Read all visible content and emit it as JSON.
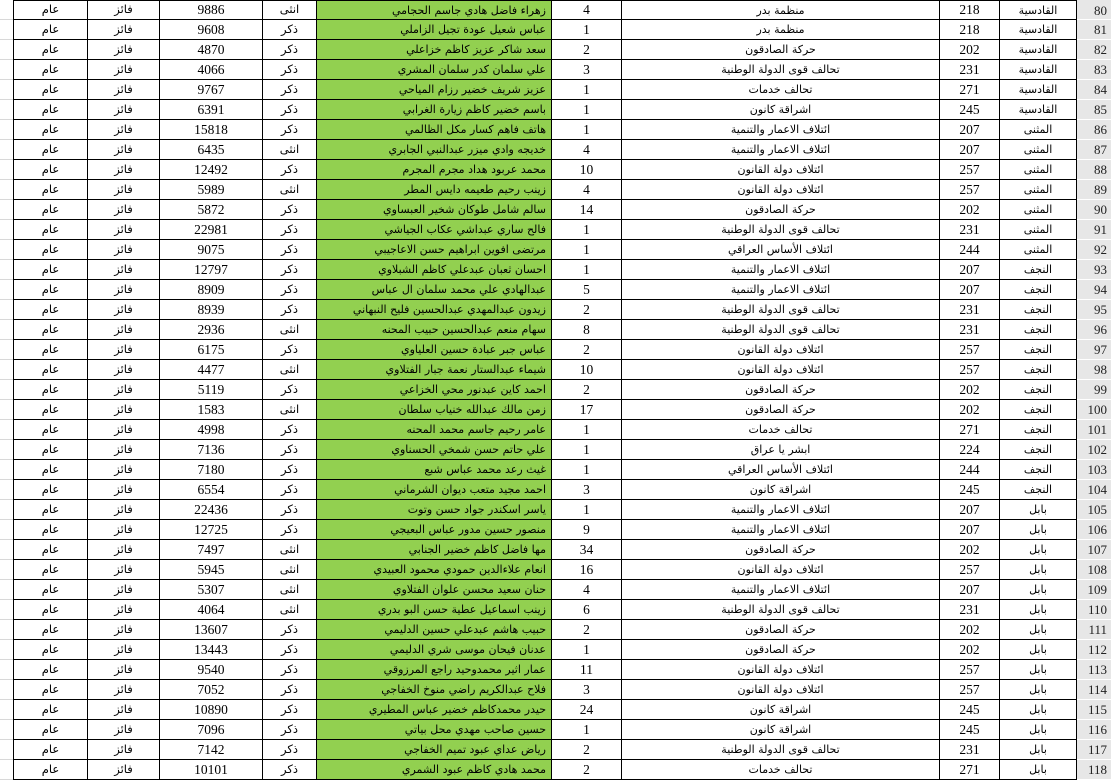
{
  "colors": {
    "highlight_green": "#92D050",
    "row_header_bg": "#E7E7E7",
    "grid_line": "#000000",
    "gutter_grid_line": "#D8D8D8"
  },
  "labels": {
    "status_winner": "فائز",
    "type_general": "عام",
    "gender_male": "ذكر",
    "gender_female": "انثى"
  },
  "rows": [
    {
      "no": 80,
      "province": "القادسية",
      "party_no": 218,
      "party": "منظمة بدر",
      "cand_no": 4,
      "name": "زهراء فاضل هادي جاسم الحجامي",
      "gender": "انثى",
      "votes": 9886,
      "status": "فائز",
      "type": "عام"
    },
    {
      "no": 81,
      "province": "القادسية",
      "party_no": 218,
      "party": "منظمة بدر",
      "cand_no": 1,
      "name": "عباس شعيل عودة تجيل الزاملي",
      "gender": "ذكر",
      "votes": 9608,
      "status": "فائز",
      "type": "عام"
    },
    {
      "no": 82,
      "province": "القادسية",
      "party_no": 202,
      "party": "حركة الصادقون",
      "cand_no": 2,
      "name": "سعد شاكر عزيز كاظم خزاعلي",
      "gender": "ذكر",
      "votes": 4870,
      "status": "فائز",
      "type": "عام"
    },
    {
      "no": 83,
      "province": "القادسية",
      "party_no": 231,
      "party": "تحالف قوى الدولة الوطنية",
      "cand_no": 3,
      "name": "علي سلمان كدر سلمان المشري",
      "gender": "ذكر",
      "votes": 4066,
      "status": "فائز",
      "type": "عام"
    },
    {
      "no": 84,
      "province": "القادسية",
      "party_no": 271,
      "party": "تحالف خدمات",
      "cand_no": 1,
      "name": "عزيز شريف خضير رزام المياحي",
      "gender": "ذكر",
      "votes": 9767,
      "status": "فائز",
      "type": "عام"
    },
    {
      "no": 85,
      "province": "القادسية",
      "party_no": 245,
      "party": "اشراقة كانون",
      "cand_no": 1,
      "name": "باسم خضير كاظم زيارة الغرابي",
      "gender": "ذكر",
      "votes": 6391,
      "status": "فائز",
      "type": "عام"
    },
    {
      "no": 86,
      "province": "المثنى",
      "party_no": 207,
      "party": "ائتلاف الاعمار والتنمية",
      "cand_no": 1,
      "name": "هاتف فاهم كسار مكل الظالمي",
      "gender": "ذكر",
      "votes": 15818,
      "status": "فائز",
      "type": "عام"
    },
    {
      "no": 87,
      "province": "المثنى",
      "party_no": 207,
      "party": "ائتلاف الاعمار والتنمية",
      "cand_no": 4,
      "name": "خديجه وادي ميزر عبدالنبي الجابري",
      "gender": "انثى",
      "votes": 6435,
      "status": "فائز",
      "type": "عام"
    },
    {
      "no": 88,
      "province": "المثنى",
      "party_no": 257,
      "party": "ائتلاف دولة القانون",
      "cand_no": 10,
      "name": "محمد عربود هداد مجرم المجرم",
      "gender": "ذكر",
      "votes": 12492,
      "status": "فائز",
      "type": "عام"
    },
    {
      "no": 89,
      "province": "المثنى",
      "party_no": 257,
      "party": "ائتلاف دولة القانون",
      "cand_no": 4,
      "name": "زينب رحيم طعيمه دايس المطر",
      "gender": "انثى",
      "votes": 5989,
      "status": "فائز",
      "type": "عام"
    },
    {
      "no": 90,
      "province": "المثنى",
      "party_no": 202,
      "party": "حركة الصادقون",
      "cand_no": 14,
      "name": "سالم شامل طوكان شخير العبساوي",
      "gender": "ذكر",
      "votes": 5872,
      "status": "فائز",
      "type": "عام"
    },
    {
      "no": 91,
      "province": "المثنى",
      "party_no": 231,
      "party": "تحالف قوى الدولة الوطنية",
      "cand_no": 1,
      "name": "فالح ساري عبداشي عكاب الجياشي",
      "gender": "ذكر",
      "votes": 22981,
      "status": "فائز",
      "type": "عام"
    },
    {
      "no": 92,
      "province": "المثنى",
      "party_no": 244,
      "party": "ائتلاف الأساس العراقي",
      "cand_no": 1,
      "name": "مرتضى افوين ابراهيم حسن الاعاجيبي",
      "gender": "ذكر",
      "votes": 9075,
      "status": "فائز",
      "type": "عام"
    },
    {
      "no": 93,
      "province": "النجف",
      "party_no": 207,
      "party": "ائتلاف الاعمار والتنمية",
      "cand_no": 1,
      "name": "احسان ثعبان عبدعلي كاظم الشبلاوي",
      "gender": "ذكر",
      "votes": 12797,
      "status": "فائز",
      "type": "عام"
    },
    {
      "no": 94,
      "province": "النجف",
      "party_no": 207,
      "party": "ائتلاف الاعمار والتنمية",
      "cand_no": 5,
      "name": "عبدالهادي علي محمد سلمان ال عباس",
      "gender": "ذكر",
      "votes": 8909,
      "status": "فائز",
      "type": "عام"
    },
    {
      "no": 95,
      "province": "النجف",
      "party_no": 231,
      "party": "تحالف قوى الدولة الوطنية",
      "cand_no": 2,
      "name": "زيدون عبدالمهدي عبدالحسين فليح النبهاني",
      "gender": "ذكر",
      "votes": 8939,
      "status": "فائز",
      "type": "عام"
    },
    {
      "no": 96,
      "province": "النجف",
      "party_no": 231,
      "party": "تحالف قوى الدولة الوطنية",
      "cand_no": 8,
      "name": "سهام منعم عبدالحسين حبيب المحنه",
      "gender": "انثى",
      "votes": 2936,
      "status": "فائز",
      "type": "عام"
    },
    {
      "no": 97,
      "province": "النجف",
      "party_no": 257,
      "party": "ائتلاف دولة القانون",
      "cand_no": 2,
      "name": "عباس جبر عبادة حسين العلياوي",
      "gender": "ذكر",
      "votes": 6175,
      "status": "فائز",
      "type": "عام"
    },
    {
      "no": 98,
      "province": "النجف",
      "party_no": 257,
      "party": "ائتلاف دولة القانون",
      "cand_no": 10,
      "name": "شيماء عبدالستار نعمة جبار الفتلاوي",
      "gender": "انثى",
      "votes": 4477,
      "status": "فائز",
      "type": "عام"
    },
    {
      "no": 99,
      "province": "النجف",
      "party_no": 202,
      "party": "حركة الصادقون",
      "cand_no": 2,
      "name": "احمد كاين عبدنور محي الخزاعي",
      "gender": "ذكر",
      "votes": 5119,
      "status": "فائز",
      "type": "عام"
    },
    {
      "no": 100,
      "province": "النجف",
      "party_no": 202,
      "party": "حركة الصادقون",
      "cand_no": 17,
      "name": "زمن مالك عبدالله خنياب سلطان",
      "gender": "انثى",
      "votes": 1583,
      "status": "فائز",
      "type": "عام"
    },
    {
      "no": 101,
      "province": "النجف",
      "party_no": 271,
      "party": "تحالف خدمات",
      "cand_no": 1,
      "name": "عامر رحيم جاسم محمد المحنه",
      "gender": "ذكر",
      "votes": 4998,
      "status": "فائز",
      "type": "عام"
    },
    {
      "no": 102,
      "province": "النجف",
      "party_no": 224,
      "party": "ابشر يا عراق",
      "cand_no": 1,
      "name": "علي حاتم حسن شمخي الحسناوي",
      "gender": "ذكر",
      "votes": 7136,
      "status": "فائز",
      "type": "عام"
    },
    {
      "no": 103,
      "province": "النجف",
      "party_no": 244,
      "party": "ائتلاف الأساس العراقي",
      "cand_no": 1,
      "name": "غيث رعد محمد عباس شبع",
      "gender": "ذكر",
      "votes": 7180,
      "status": "فائز",
      "type": "عام"
    },
    {
      "no": 104,
      "province": "النجف",
      "party_no": 245,
      "party": "اشراقة كانون",
      "cand_no": 3,
      "name": "احمد مجيد متعب ديوان الشرماني",
      "gender": "ذكر",
      "votes": 6554,
      "status": "فائز",
      "type": "عام"
    },
    {
      "no": 105,
      "province": "بابل",
      "party_no": 207,
      "party": "ائتلاف الاعمار والتنمية",
      "cand_no": 1,
      "name": "ياسر اسكندر جواد حسن وتوت",
      "gender": "ذكر",
      "votes": 22436,
      "status": "فائز",
      "type": "عام"
    },
    {
      "no": 106,
      "province": "بابل",
      "party_no": 207,
      "party": "ائتلاف الاعمار والتنمية",
      "cand_no": 9,
      "name": "منصور حسين مدور عباس البعيجي",
      "gender": "ذكر",
      "votes": 12725,
      "status": "فائز",
      "type": "عام"
    },
    {
      "no": 107,
      "province": "بابل",
      "party_no": 202,
      "party": "حركة الصادقون",
      "cand_no": 34,
      "name": "مها فاضل كاظم خضير الجنابي",
      "gender": "انثى",
      "votes": 7497,
      "status": "فائز",
      "type": "عام"
    },
    {
      "no": 108,
      "province": "بابل",
      "party_no": 257,
      "party": "ائتلاف دولة القانون",
      "cand_no": 16,
      "name": "انعام علاءالدين حمودي محمود العبيدي",
      "gender": "انثى",
      "votes": 5945,
      "status": "فائز",
      "type": "عام"
    },
    {
      "no": 109,
      "province": "بابل",
      "party_no": 207,
      "party": "ائتلاف الاعمار والتنمية",
      "cand_no": 4,
      "name": "حنان سعيد محسن علوان الفتلاوي",
      "gender": "انثى",
      "votes": 5307,
      "status": "فائز",
      "type": "عام"
    },
    {
      "no": 110,
      "province": "بابل",
      "party_no": 231,
      "party": "تحالف قوى الدولة الوطنية",
      "cand_no": 6,
      "name": "زينب اسماعيل عطية حسن البو بدري",
      "gender": "انثى",
      "votes": 4064,
      "status": "فائز",
      "type": "عام"
    },
    {
      "no": 111,
      "province": "بابل",
      "party_no": 202,
      "party": "حركة الصادقون",
      "cand_no": 2,
      "name": "حبيب هاشم عبدعلي حسين الدليمي",
      "gender": "ذكر",
      "votes": 13607,
      "status": "فائز",
      "type": "عام"
    },
    {
      "no": 112,
      "province": "بابل",
      "party_no": 202,
      "party": "حركة الصادقون",
      "cand_no": 1,
      "name": "عدنان فيحان موسى شري الدليمي",
      "gender": "ذكر",
      "votes": 13443,
      "status": "فائز",
      "type": "عام"
    },
    {
      "no": 113,
      "province": "بابل",
      "party_no": 257,
      "party": "ائتلاف دولة القانون",
      "cand_no": 11,
      "name": "عمار اثير محمدوحيد راجع المرزوقي",
      "gender": "ذكر",
      "votes": 9540,
      "status": "فائز",
      "type": "عام"
    },
    {
      "no": 114,
      "province": "بابل",
      "party_no": 257,
      "party": "ائتلاف دولة القانون",
      "cand_no": 3,
      "name": "فلاح عبدالكريم راضي منوخ الخفاجي",
      "gender": "ذكر",
      "votes": 7052,
      "status": "فائز",
      "type": "عام"
    },
    {
      "no": 115,
      "province": "بابل",
      "party_no": 245,
      "party": "اشراقة كانون",
      "cand_no": 24,
      "name": "حيدر محمدكاظم خضير عباس المطيري",
      "gender": "ذكر",
      "votes": 10890,
      "status": "فائز",
      "type": "عام"
    },
    {
      "no": 116,
      "province": "بابل",
      "party_no": 245,
      "party": "اشراقة كانون",
      "cand_no": 1,
      "name": "حسين صاحب مهدي محل بياتي",
      "gender": "ذكر",
      "votes": 7096,
      "status": "فائز",
      "type": "عام"
    },
    {
      "no": 117,
      "province": "بابل",
      "party_no": 231,
      "party": "تحالف قوى الدولة الوطنية",
      "cand_no": 2,
      "name": "رياض عداي عبود تميم الخفاجي",
      "gender": "ذكر",
      "votes": 7142,
      "status": "فائز",
      "type": "عام"
    },
    {
      "no": 118,
      "province": "بابل",
      "party_no": 271,
      "party": "تحالف خدمات",
      "cand_no": 2,
      "name": "محمد هادي كاظم عبود الشمري",
      "gender": "ذكر",
      "votes": 10101,
      "status": "فائز",
      "type": "عام"
    }
  ]
}
